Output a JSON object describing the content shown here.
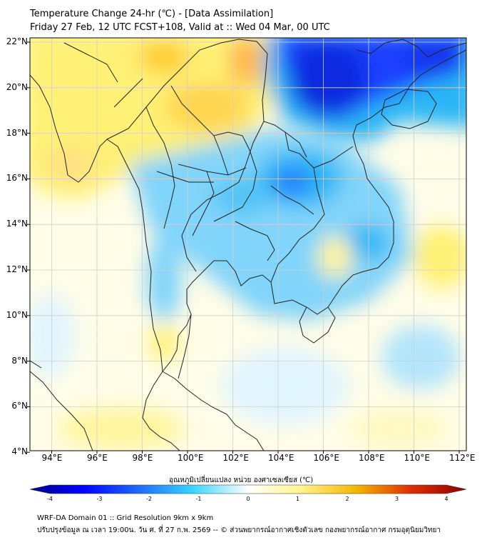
{
  "header": {
    "title": "Temperature Change 24-hr (℃) - [Data Assimilation]",
    "subtitle": "Friday 27 Feb, 12 UTC FCST+108, Valid at :: Wed 04 Mar, 00 UTC"
  },
  "map": {
    "lat_labels": [
      "22°N",
      "20°N",
      "18°N",
      "16°N",
      "14°N",
      "12°N",
      "10°N",
      "8°N",
      "6°N",
      "4°N"
    ],
    "lon_labels": [
      "94°E",
      "96°E",
      "98°E",
      "100°E",
      "102°E",
      "104°E",
      "106°E",
      "108°E",
      "110°E",
      "112°E"
    ]
  },
  "colorbar": {
    "label": "อุณหภูมิเปลี่ยนแปลง หน่วย องศาเซลเซียส (℃)",
    "ticks": [
      "-4",
      "-3",
      "-2",
      "-1",
      "0",
      "1",
      "2",
      "3",
      "4"
    ],
    "range": [
      -4,
      4
    ],
    "colors": [
      "#00008b",
      "#0000ff",
      "#1e6bff",
      "#35d4ff",
      "#ffffff",
      "#fff68a",
      "#f5b400",
      "#e03000",
      "#8b0000"
    ]
  },
  "footer": {
    "line1": "WRF-DA Domain 01 :: Grid Resolution 9km x 9km",
    "line2": "ปรับปรุงข้อมูล ณ เวลา 19:00น. วัน ศ. ที่ 27 ก.พ. 2569 -- © ส่วนพยากรณ์อากาศเชิงตัวเลข กองพยากรณ์อากาศ กรมอุตุนิยมวิทยา"
  }
}
